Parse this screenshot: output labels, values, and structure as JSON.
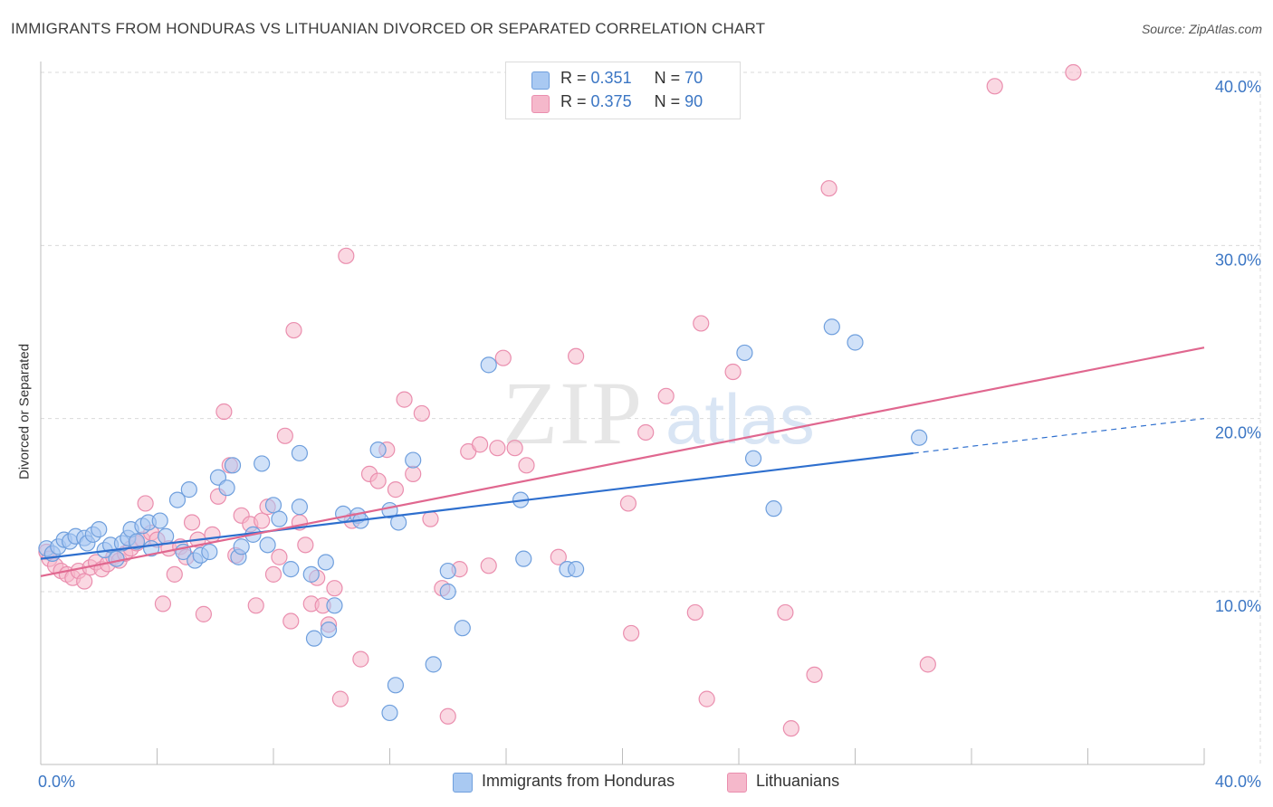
{
  "header": {
    "title": "IMMIGRANTS FROM HONDURAS VS LITHUANIAN DIVORCED OR SEPARATED CORRELATION CHART",
    "source": "Source: ZipAtlas.com"
  },
  "watermark": {
    "zip": "ZIP",
    "atlas": "atlas"
  },
  "colors": {
    "blue_fill": "#a9c9f2",
    "blue_stroke": "#6f9fdd",
    "blue_line": "#2e6fce",
    "pink_fill": "#f5b8cb",
    "pink_stroke": "#ea8eae",
    "pink_line": "#e0678f",
    "tick_label": "#3b76c4",
    "grid": "#d9d9d9"
  },
  "stats_legend": {
    "rows": [
      {
        "r_label": "R =",
        "r_value": "0.351",
        "n_label": "N =",
        "n_value": "70",
        "series": "blue"
      },
      {
        "r_label": "R =",
        "r_value": "0.375",
        "n_label": "N =",
        "n_value": "90",
        "series": "pink"
      }
    ]
  },
  "bottom_legend": {
    "items": [
      {
        "label": "Immigrants from Honduras",
        "series": "blue"
      },
      {
        "label": "Lithuanians",
        "series": "pink"
      }
    ]
  },
  "chart_data": {
    "type": "scatter",
    "title": "IMMIGRANTS FROM HONDURAS VS LITHUANIAN DIVORCED OR SEPARATED CORRELATION CHART",
    "xlabel": "",
    "ylabel": "Divorced or Separated",
    "xlim": [
      0,
      40
    ],
    "ylim": [
      0,
      40
    ],
    "x_tick_labels": [
      {
        "value": 0,
        "label": "0.0%"
      },
      {
        "value": 40,
        "label": "40.0%"
      }
    ],
    "y_tick_labels": [
      {
        "value": 10,
        "label": "10.0%"
      },
      {
        "value": 20,
        "label": "20.0%"
      },
      {
        "value": 30,
        "label": "30.0%"
      },
      {
        "value": 40,
        "label": "40.0%"
      }
    ],
    "x_minor_ticks": [
      0,
      4,
      8,
      12,
      16,
      20,
      24,
      28,
      32,
      36,
      40
    ],
    "series": [
      {
        "name": "Immigrants from Honduras",
        "color": "blue",
        "R": 0.351,
        "N": 70,
        "trend": {
          "x0": 0,
          "y0": 11.9,
          "x1": 30,
          "y1": 18.0,
          "dash_x1": 40,
          "dash_y1": 20.0
        },
        "points": [
          [
            0.2,
            12.5
          ],
          [
            0.4,
            12.2
          ],
          [
            0.6,
            12.6
          ],
          [
            0.8,
            13.0
          ],
          [
            1.0,
            12.9
          ],
          [
            1.2,
            13.2
          ],
          [
            1.5,
            13.1
          ],
          [
            1.6,
            12.8
          ],
          [
            1.8,
            13.3
          ],
          [
            2.0,
            13.6
          ],
          [
            2.2,
            12.4
          ],
          [
            2.4,
            12.7
          ],
          [
            2.6,
            11.9
          ],
          [
            2.8,
            12.8
          ],
          [
            3.0,
            13.1
          ],
          [
            3.1,
            13.6
          ],
          [
            3.3,
            12.9
          ],
          [
            3.5,
            13.8
          ],
          [
            3.7,
            14.0
          ],
          [
            3.8,
            12.5
          ],
          [
            4.1,
            14.1
          ],
          [
            4.3,
            13.2
          ],
          [
            4.7,
            15.3
          ],
          [
            4.9,
            12.3
          ],
          [
            5.1,
            15.9
          ],
          [
            5.3,
            11.8
          ],
          [
            5.5,
            12.1
          ],
          [
            5.8,
            12.3
          ],
          [
            6.1,
            16.6
          ],
          [
            6.4,
            16.0
          ],
          [
            6.6,
            17.3
          ],
          [
            6.8,
            12.0
          ],
          [
            6.9,
            12.6
          ],
          [
            7.3,
            13.3
          ],
          [
            7.6,
            17.4
          ],
          [
            7.8,
            12.7
          ],
          [
            8.0,
            15.0
          ],
          [
            8.2,
            14.2
          ],
          [
            8.6,
            11.3
          ],
          [
            8.9,
            18.0
          ],
          [
            8.9,
            14.9
          ],
          [
            9.3,
            11.0
          ],
          [
            9.4,
            7.3
          ],
          [
            9.8,
            11.7
          ],
          [
            9.9,
            7.8
          ],
          [
            10.1,
            9.2
          ],
          [
            10.4,
            14.5
          ],
          [
            10.9,
            14.4
          ],
          [
            11.0,
            14.1
          ],
          [
            11.6,
            18.2
          ],
          [
            12.0,
            14.7
          ],
          [
            12.2,
            4.6
          ],
          [
            12.3,
            14.0
          ],
          [
            12.8,
            17.6
          ],
          [
            13.5,
            5.8
          ],
          [
            14.0,
            11.2
          ],
          [
            14.0,
            10.0
          ],
          [
            14.5,
            7.9
          ],
          [
            15.4,
            23.1
          ],
          [
            16.5,
            15.3
          ],
          [
            16.6,
            11.9
          ],
          [
            18.1,
            11.3
          ],
          [
            18.4,
            11.3
          ],
          [
            24.2,
            23.8
          ],
          [
            24.5,
            17.7
          ],
          [
            25.2,
            14.8
          ],
          [
            27.2,
            25.3
          ],
          [
            28.0,
            24.4
          ],
          [
            30.2,
            18.9
          ],
          [
            12.0,
            3.0
          ]
        ]
      },
      {
        "name": "Lithuanians",
        "color": "pink",
        "R": 0.375,
        "N": 90,
        "trend": {
          "x0": 0,
          "y0": 10.9,
          "x1": 40,
          "y1": 24.1
        },
        "points": [
          [
            0.2,
            12.3
          ],
          [
            0.3,
            11.9
          ],
          [
            0.5,
            11.5
          ],
          [
            0.7,
            11.2
          ],
          [
            0.9,
            11.0
          ],
          [
            1.1,
            10.8
          ],
          [
            1.3,
            11.2
          ],
          [
            1.5,
            10.6
          ],
          [
            1.7,
            11.4
          ],
          [
            1.9,
            11.7
          ],
          [
            2.1,
            11.3
          ],
          [
            2.3,
            11.6
          ],
          [
            2.5,
            12.0
          ],
          [
            2.7,
            11.8
          ],
          [
            2.9,
            12.2
          ],
          [
            3.1,
            12.5
          ],
          [
            3.3,
            12.8
          ],
          [
            3.5,
            13.0
          ],
          [
            3.6,
            15.1
          ],
          [
            3.8,
            13.4
          ],
          [
            4.0,
            13.0
          ],
          [
            4.2,
            9.3
          ],
          [
            4.4,
            12.5
          ],
          [
            4.6,
            11.0
          ],
          [
            4.8,
            12.6
          ],
          [
            5.0,
            12.0
          ],
          [
            5.2,
            14.0
          ],
          [
            5.4,
            13.0
          ],
          [
            5.6,
            8.7
          ],
          [
            5.9,
            13.3
          ],
          [
            6.1,
            15.5
          ],
          [
            6.3,
            20.4
          ],
          [
            6.5,
            17.3
          ],
          [
            6.7,
            12.1
          ],
          [
            6.9,
            14.4
          ],
          [
            7.2,
            13.9
          ],
          [
            7.4,
            9.2
          ],
          [
            7.6,
            14.1
          ],
          [
            7.8,
            14.9
          ],
          [
            8.0,
            11.0
          ],
          [
            8.2,
            12.0
          ],
          [
            8.4,
            19.0
          ],
          [
            8.6,
            8.3
          ],
          [
            8.7,
            25.1
          ],
          [
            8.9,
            14.0
          ],
          [
            9.1,
            12.7
          ],
          [
            9.3,
            9.3
          ],
          [
            9.5,
            10.8
          ],
          [
            9.7,
            9.2
          ],
          [
            9.9,
            8.1
          ],
          [
            10.1,
            10.2
          ],
          [
            10.3,
            3.8
          ],
          [
            10.5,
            29.4
          ],
          [
            10.7,
            14.1
          ],
          [
            11.0,
            6.1
          ],
          [
            11.3,
            16.8
          ],
          [
            11.6,
            16.4
          ],
          [
            11.9,
            18.2
          ],
          [
            12.2,
            15.9
          ],
          [
            12.5,
            21.1
          ],
          [
            12.8,
            16.8
          ],
          [
            13.1,
            20.3
          ],
          [
            13.4,
            14.2
          ],
          [
            13.8,
            10.2
          ],
          [
            14.0,
            2.8
          ],
          [
            14.4,
            11.3
          ],
          [
            14.7,
            18.1
          ],
          [
            15.1,
            18.5
          ],
          [
            15.4,
            11.5
          ],
          [
            15.7,
            18.3
          ],
          [
            15.9,
            23.5
          ],
          [
            16.3,
            18.3
          ],
          [
            16.7,
            17.3
          ],
          [
            17.8,
            12.0
          ],
          [
            18.4,
            23.6
          ],
          [
            20.2,
            15.1
          ],
          [
            20.3,
            7.6
          ],
          [
            20.8,
            19.2
          ],
          [
            21.5,
            21.3
          ],
          [
            22.5,
            8.8
          ],
          [
            22.7,
            25.5
          ],
          [
            22.9,
            3.8
          ],
          [
            23.8,
            22.7
          ],
          [
            25.6,
            8.8
          ],
          [
            25.8,
            2.1
          ],
          [
            26.6,
            5.2
          ],
          [
            27.1,
            33.3
          ],
          [
            30.5,
            5.8
          ],
          [
            32.8,
            39.2
          ],
          [
            35.5,
            40.0
          ]
        ]
      }
    ]
  }
}
